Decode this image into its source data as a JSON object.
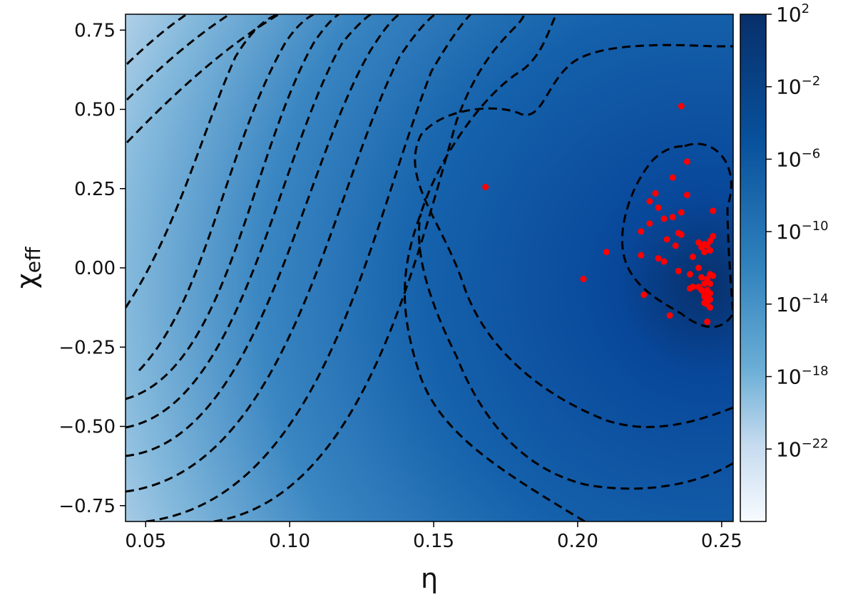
{
  "chart_data": {
    "type": "heatmap",
    "title": "",
    "xlabel": "η",
    "ylabel_base": "χ",
    "ylabel_sub": "eff",
    "xlim": [
      0.043,
      0.254
    ],
    "ylim": [
      -0.8,
      0.8
    ],
    "x_ticks": [
      0.05,
      0.1,
      0.15,
      0.2,
      0.25
    ],
    "x_tick_labels": [
      "0.05",
      "0.10",
      "0.15",
      "0.20",
      "0.25"
    ],
    "y_ticks": [
      0.75,
      0.5,
      0.25,
      0.0,
      -0.25,
      -0.5,
      -0.75
    ],
    "y_tick_labels": [
      "0.75",
      "0.50",
      "0.25",
      "0.00",
      "−0.25",
      "−0.50",
      "−0.75"
    ],
    "grid": false,
    "colormap": "Blues",
    "colorbar": {
      "scale": "log",
      "range_exponent": [
        -26,
        2
      ],
      "tick_exponents": [
        2,
        -2,
        -6,
        -10,
        -14,
        -18,
        -22
      ],
      "tick_base": "10",
      "tick_exp_labels": [
        "2",
        "−2",
        "−6",
        "−10",
        "−14",
        "−18",
        "−22"
      ],
      "color_low": "#f7fbff",
      "color_high": "#08306b"
    },
    "contours": {
      "style": "dashed",
      "color": "#000000"
    },
    "points": {
      "color": "#ff0000",
      "x": [
        0.236,
        0.168,
        0.238,
        0.233,
        0.227,
        0.225,
        0.238,
        0.228,
        0.247,
        0.236,
        0.23,
        0.233,
        0.225,
        0.222,
        0.235,
        0.247,
        0.231,
        0.234,
        0.236,
        0.246,
        0.242,
        0.21,
        0.244,
        0.243,
        0.245,
        0.246,
        0.222,
        0.24,
        0.228,
        0.244,
        0.23,
        0.242,
        0.235,
        0.239,
        0.246,
        0.247,
        0.243,
        0.245,
        0.202,
        0.24,
        0.244,
        0.246,
        0.239,
        0.242,
        0.245,
        0.243,
        0.223,
        0.244,
        0.246,
        0.244,
        0.245,
        0.246,
        0.244,
        0.245,
        0.246,
        0.232,
        0.245
      ],
      "y": [
        0.51,
        0.255,
        0.335,
        0.285,
        0.235,
        0.21,
        0.23,
        0.19,
        0.18,
        0.175,
        0.155,
        0.16,
        0.14,
        0.115,
        0.11,
        0.1,
        0.09,
        0.07,
        0.105,
        0.085,
        0.08,
        0.05,
        0.075,
        0.065,
        0.07,
        0.055,
        0.04,
        0.035,
        0.03,
        0.05,
        0.02,
        0.0,
        -0.01,
        -0.02,
        -0.02,
        -0.025,
        -0.03,
        -0.035,
        -0.035,
        -0.06,
        -0.05,
        -0.05,
        -0.065,
        -0.06,
        -0.07,
        -0.07,
        -0.085,
        -0.08,
        -0.08,
        -0.09,
        -0.095,
        -0.1,
        -0.11,
        -0.115,
        -0.125,
        -0.15,
        -0.17
      ]
    }
  }
}
